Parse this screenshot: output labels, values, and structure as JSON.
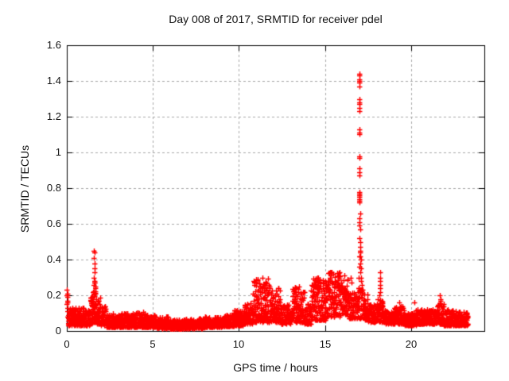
{
  "chart_data": {
    "type": "scatter",
    "title": "Day 008 of 2017, SRMTID for receiver pdel",
    "xlabel": "GPS time / hours",
    "ylabel": "SRMTID / TECUs",
    "xlim": [
      0,
      24.25
    ],
    "ylim": [
      0,
      1.6
    ],
    "xticks": [
      0,
      5,
      10,
      15,
      20
    ],
    "yticks": [
      0,
      0.2,
      0.4,
      0.6,
      0.8,
      1,
      1.2,
      1.4,
      1.6
    ],
    "grid": true,
    "legend": false,
    "marker": "plus",
    "marker_color": "#ff0000",
    "grid_color": "#a9a9a9",
    "axis_color": "#000000",
    "background_color": "#ffffff",
    "band_segments": [
      [
        0.05,
        0.5,
        0.03,
        0.13,
        52
      ],
      [
        0.5,
        1.0,
        0.03,
        0.13,
        60
      ],
      [
        1.0,
        1.35,
        0.03,
        0.12,
        42
      ],
      [
        1.35,
        1.55,
        0.04,
        0.2,
        28
      ],
      [
        1.55,
        1.75,
        0.05,
        0.28,
        30
      ],
      [
        1.75,
        1.95,
        0.04,
        0.22,
        26
      ],
      [
        1.95,
        2.3,
        0.03,
        0.14,
        42
      ],
      [
        2.3,
        3.0,
        0.02,
        0.1,
        85
      ],
      [
        3.0,
        4.0,
        0.02,
        0.1,
        120
      ],
      [
        4.0,
        4.6,
        0.02,
        0.11,
        70
      ],
      [
        4.6,
        5.2,
        0.02,
        0.09,
        70
      ],
      [
        5.2,
        6.0,
        0.015,
        0.08,
        95
      ],
      [
        6.0,
        7.0,
        0.01,
        0.065,
        115
      ],
      [
        7.0,
        8.0,
        0.015,
        0.07,
        115
      ],
      [
        8.0,
        9.0,
        0.02,
        0.08,
        115
      ],
      [
        9.0,
        9.7,
        0.025,
        0.09,
        82
      ],
      [
        9.7,
        10.3,
        0.03,
        0.12,
        70
      ],
      [
        10.3,
        10.8,
        0.04,
        0.16,
        58
      ],
      [
        10.8,
        11.8,
        0.05,
        0.3,
        115
      ],
      [
        11.8,
        12.4,
        0.05,
        0.24,
        70
      ],
      [
        12.4,
        13.1,
        0.04,
        0.15,
        80
      ],
      [
        13.1,
        13.8,
        0.05,
        0.25,
        80
      ],
      [
        13.8,
        14.2,
        0.04,
        0.16,
        46
      ],
      [
        14.2,
        15.1,
        0.06,
        0.3,
        105
      ],
      [
        15.1,
        15.9,
        0.08,
        0.33,
        92
      ],
      [
        15.9,
        16.3,
        0.09,
        0.3,
        46
      ],
      [
        16.3,
        16.9,
        0.07,
        0.22,
        66
      ],
      [
        16.9,
        17.2,
        0.07,
        0.24,
        32
      ],
      [
        17.2,
        17.5,
        0.06,
        0.22,
        34
      ],
      [
        17.5,
        18.0,
        0.05,
        0.15,
        56
      ],
      [
        18.0,
        18.35,
        0.05,
        0.18,
        40
      ],
      [
        18.35,
        19.0,
        0.04,
        0.12,
        74
      ],
      [
        19.0,
        19.6,
        0.04,
        0.14,
        68
      ],
      [
        19.6,
        20.3,
        0.03,
        0.1,
        80
      ],
      [
        20.3,
        21.0,
        0.04,
        0.12,
        80
      ],
      [
        21.0,
        21.5,
        0.04,
        0.12,
        58
      ],
      [
        21.5,
        21.9,
        0.04,
        0.16,
        46
      ],
      [
        21.9,
        22.5,
        0.03,
        0.12,
        68
      ],
      [
        22.5,
        23.3,
        0.03,
        0.11,
        92
      ]
    ],
    "spike_points": [
      [
        0.02,
        0.23
      ],
      [
        0.03,
        0.21
      ],
      [
        0.02,
        0.2
      ],
      [
        0.04,
        0.19
      ],
      [
        0.03,
        0.17
      ],
      [
        0.05,
        0.16
      ],
      [
        0.02,
        0.15
      ],
      [
        0.04,
        0.13
      ],
      [
        1.58,
        0.45
      ],
      [
        1.6,
        0.44
      ],
      [
        1.59,
        0.41
      ],
      [
        1.61,
        0.38
      ],
      [
        1.6,
        0.35
      ],
      [
        1.62,
        0.33
      ],
      [
        1.57,
        0.3
      ],
      [
        1.63,
        0.28
      ],
      [
        1.55,
        0.26
      ],
      [
        1.65,
        0.24
      ],
      [
        1.52,
        0.22
      ],
      [
        1.68,
        0.21
      ],
      [
        1.48,
        0.19
      ],
      [
        1.7,
        0.18
      ],
      [
        14.55,
        0.3
      ],
      [
        14.57,
        0.28
      ],
      [
        14.6,
        0.26
      ],
      [
        15.0,
        0.28
      ],
      [
        15.02,
        0.26
      ],
      [
        15.3,
        0.33
      ],
      [
        15.35,
        0.31
      ],
      [
        15.85,
        0.33
      ],
      [
        15.8,
        0.31
      ],
      [
        16.1,
        0.31
      ],
      [
        16.5,
        0.3
      ],
      [
        16.52,
        0.27
      ],
      [
        16.97,
        0.3
      ],
      [
        16.98,
        0.36
      ],
      [
        16.99,
        0.42
      ],
      [
        17.0,
        1.44
      ],
      [
        17.0,
        1.43
      ],
      [
        17.01,
        1.41
      ],
      [
        16.99,
        1.4
      ],
      [
        17.0,
        1.39
      ],
      [
        17.01,
        1.37
      ],
      [
        17.0,
        1.3
      ],
      [
        16.99,
        1.28
      ],
      [
        17.01,
        1.27
      ],
      [
        17.0,
        1.25
      ],
      [
        17.02,
        1.23
      ],
      [
        17.0,
        1.13
      ],
      [
        17.01,
        1.11
      ],
      [
        16.99,
        1.1
      ],
      [
        17.0,
        0.98
      ],
      [
        17.01,
        0.97
      ],
      [
        17.0,
        0.91
      ],
      [
        16.99,
        0.89
      ],
      [
        17.01,
        0.87
      ],
      [
        17.02,
        0.78
      ],
      [
        17.0,
        0.77
      ],
      [
        17.01,
        0.76
      ],
      [
        16.99,
        0.75
      ],
      [
        17.0,
        0.74
      ],
      [
        17.02,
        0.73
      ],
      [
        17.01,
        0.72
      ],
      [
        17.03,
        0.66
      ],
      [
        17.0,
        0.63
      ],
      [
        17.02,
        0.61
      ],
      [
        17.01,
        0.59
      ],
      [
        17.04,
        0.57
      ],
      [
        17.02,
        0.52
      ],
      [
        17.05,
        0.5
      ],
      [
        17.03,
        0.47
      ],
      [
        17.06,
        0.45
      ],
      [
        17.04,
        0.44
      ],
      [
        17.05,
        0.42
      ],
      [
        17.07,
        0.4
      ],
      [
        17.06,
        0.38
      ],
      [
        17.08,
        0.35
      ],
      [
        17.05,
        0.33
      ],
      [
        17.08,
        0.3
      ],
      [
        17.1,
        0.28
      ],
      [
        17.12,
        0.26
      ],
      [
        18.18,
        0.33
      ],
      [
        18.2,
        0.3
      ],
      [
        18.19,
        0.28
      ],
      [
        18.21,
        0.26
      ],
      [
        18.2,
        0.24
      ],
      [
        18.22,
        0.22
      ],
      [
        18.17,
        0.2
      ],
      [
        19.3,
        0.16
      ],
      [
        20.2,
        0.16
      ],
      [
        21.68,
        0.2
      ],
      [
        21.7,
        0.18
      ],
      [
        21.72,
        0.17
      ],
      [
        21.66,
        0.15
      ],
      [
        21.74,
        0.14
      ]
    ]
  }
}
